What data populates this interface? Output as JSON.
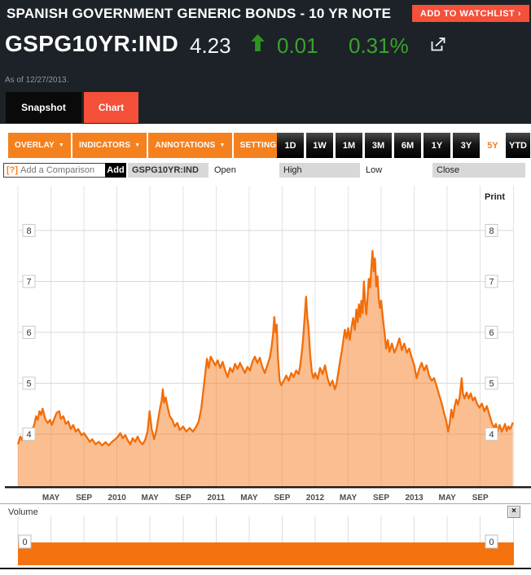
{
  "header": {
    "instrument_title": "SPANISH GOVERNMENT GENERIC BONDS - 10 YR NOTE",
    "watchlist_button": "ADD TO WATCHLIST ›",
    "ticker": "GSPG10YR:IND",
    "price": "4.23",
    "change_direction": "up",
    "change": "0.01",
    "change_pct": "0.31%",
    "as_of": "As of 12/27/2013.",
    "up_green": "#3ba32a",
    "accent_red": "#f4503a"
  },
  "tabs": [
    {
      "label": "Snapshot",
      "active": false
    },
    {
      "label": "Chart",
      "active": true
    }
  ],
  "toolbar": {
    "dropdown_caret": "▼",
    "dropdowns": [
      {
        "label": "OVERLAY"
      },
      {
        "label": "INDICATORS"
      },
      {
        "label": "ANNOTATIONS"
      },
      {
        "label": "SETTINGS"
      }
    ],
    "ranges": [
      {
        "label": "1D",
        "selected": false
      },
      {
        "label": "1W",
        "selected": false
      },
      {
        "label": "1M",
        "selected": false
      },
      {
        "label": "3M",
        "selected": false
      },
      {
        "label": "6M",
        "selected": false
      },
      {
        "label": "1Y",
        "selected": false
      },
      {
        "label": "3Y",
        "selected": false
      },
      {
        "label": "5Y",
        "selected": true
      },
      {
        "label": "YTD",
        "selected": false
      }
    ]
  },
  "comparison": {
    "help_icon": "[?]",
    "placeholder": "Add a Comparison",
    "add_button": "Add",
    "columns": [
      "GSPG10YR:IND",
      "Open",
      "High",
      "Low",
      "Close"
    ]
  },
  "chart": {
    "print_label": "Print"
  },
  "volume_panel": {
    "label": "Volume",
    "close_glyph": "×",
    "zero_left": "0",
    "zero_right": "0",
    "bar_color": "#f5730f"
  },
  "chart_data": [
    {
      "type": "area",
      "series_name": "GSPG10YR:IND 10-yr yield (%)",
      "x_unit": "months since Jan 2009",
      "xlim": [
        0,
        60
      ],
      "ylim": [
        2.98,
        8.88
      ],
      "grid": true,
      "y_ticks": [
        4,
        5,
        6,
        7,
        8
      ],
      "x_ticks": [
        {
          "m": 4,
          "label": "MAY"
        },
        {
          "m": 8,
          "label": "SEP"
        },
        {
          "m": 12,
          "label": "2010"
        },
        {
          "m": 16,
          "label": "MAY"
        },
        {
          "m": 20,
          "label": "SEP"
        },
        {
          "m": 24,
          "label": "2011"
        },
        {
          "m": 28,
          "label": "MAY"
        },
        {
          "m": 32,
          "label": "SEP"
        },
        {
          "m": 36,
          "label": "2012"
        },
        {
          "m": 40,
          "label": "MAY"
        },
        {
          "m": 44,
          "label": "SEP"
        },
        {
          "m": 48,
          "label": "2013"
        },
        {
          "m": 52,
          "label": "MAY"
        },
        {
          "m": 56,
          "label": "SEP"
        }
      ],
      "line_color": "#f26d09",
      "fill_color": "rgba(245,120,25,0.48)",
      "points": [
        [
          0,
          3.8
        ],
        [
          0.3,
          3.95
        ],
        [
          0.5,
          3.88
        ],
        [
          0.8,
          4.05
        ],
        [
          1.1,
          3.98
        ],
        [
          1.4,
          4.1
        ],
        [
          1.7,
          4.05
        ],
        [
          2,
          4.2
        ],
        [
          2.2,
          4.35
        ],
        [
          2.4,
          4.28
        ],
        [
          2.6,
          4.45
        ],
        [
          2.8,
          4.38
        ],
        [
          3,
          4.5
        ],
        [
          3.3,
          4.3
        ],
        [
          3.6,
          4.22
        ],
        [
          3.9,
          4.28
        ],
        [
          4.1,
          4.18
        ],
        [
          4.4,
          4.3
        ],
        [
          4.7,
          4.42
        ],
        [
          5,
          4.45
        ],
        [
          5.2,
          4.3
        ],
        [
          5.5,
          4.35
        ],
        [
          5.8,
          4.2
        ],
        [
          6.1,
          4.25
        ],
        [
          6.4,
          4.1
        ],
        [
          6.7,
          4.18
        ],
        [
          7,
          4.05
        ],
        [
          7.3,
          4.1
        ],
        [
          7.7,
          3.98
        ],
        [
          8,
          4.02
        ],
        [
          8.3,
          3.95
        ],
        [
          8.7,
          3.85
        ],
        [
          9,
          3.9
        ],
        [
          9.4,
          3.8
        ],
        [
          9.8,
          3.85
        ],
        [
          10.2,
          3.78
        ],
        [
          10.6,
          3.84
        ],
        [
          11,
          3.78
        ],
        [
          11.4,
          3.85
        ],
        [
          11.8,
          3.9
        ],
        [
          12.1,
          3.95
        ],
        [
          12.4,
          4.02
        ],
        [
          12.7,
          3.92
        ],
        [
          13,
          3.98
        ],
        [
          13.3,
          3.88
        ],
        [
          13.6,
          3.8
        ],
        [
          13.9,
          3.92
        ],
        [
          14.2,
          3.85
        ],
        [
          14.5,
          3.95
        ],
        [
          14.8,
          3.85
        ],
        [
          15.1,
          3.8
        ],
        [
          15.4,
          3.88
        ],
        [
          15.7,
          4.05
        ],
        [
          15.95,
          4.45
        ],
        [
          16.2,
          4.1
        ],
        [
          16.5,
          3.9
        ],
        [
          16.8,
          4.1
        ],
        [
          17,
          4.3
        ],
        [
          17.2,
          4.5
        ],
        [
          17.4,
          4.65
        ],
        [
          17.55,
          4.88
        ],
        [
          17.7,
          4.62
        ],
        [
          17.9,
          4.72
        ],
        [
          18.1,
          4.55
        ],
        [
          18.4,
          4.35
        ],
        [
          18.7,
          4.28
        ],
        [
          19,
          4.15
        ],
        [
          19.3,
          4.22
        ],
        [
          19.6,
          4.08
        ],
        [
          20,
          4.15
        ],
        [
          20.4,
          4.05
        ],
        [
          20.8,
          4.12
        ],
        [
          21.2,
          4.05
        ],
        [
          21.6,
          4.15
        ],
        [
          21.9,
          4.25
        ],
        [
          22.2,
          4.5
        ],
        [
          22.45,
          4.85
        ],
        [
          22.7,
          5.2
        ],
        [
          22.9,
          5.48
        ],
        [
          23.1,
          5.3
        ],
        [
          23.35,
          5.52
        ],
        [
          23.6,
          5.45
        ],
        [
          23.9,
          5.35
        ],
        [
          24.2,
          5.45
        ],
        [
          24.5,
          5.3
        ],
        [
          24.8,
          5.42
        ],
        [
          25.1,
          5.25
        ],
        [
          25.4,
          5.12
        ],
        [
          25.7,
          5.3
        ],
        [
          26,
          5.22
        ],
        [
          26.3,
          5.38
        ],
        [
          26.6,
          5.28
        ],
        [
          26.9,
          5.4
        ],
        [
          27.2,
          5.3
        ],
        [
          27.5,
          5.2
        ],
        [
          27.8,
          5.32
        ],
        [
          28.1,
          5.25
        ],
        [
          28.4,
          5.42
        ],
        [
          28.7,
          5.52
        ],
        [
          29,
          5.4
        ],
        [
          29.3,
          5.5
        ],
        [
          29.6,
          5.32
        ],
        [
          29.9,
          5.2
        ],
        [
          30.2,
          5.35
        ],
        [
          30.5,
          5.5
        ],
        [
          30.7,
          5.68
        ],
        [
          30.9,
          5.95
        ],
        [
          31.05,
          6.3
        ],
        [
          31.2,
          6
        ],
        [
          31.35,
          6.15
        ],
        [
          31.5,
          5.5
        ],
        [
          31.7,
          5.05
        ],
        [
          31.9,
          4.96
        ],
        [
          32.2,
          5.05
        ],
        [
          32.5,
          5.15
        ],
        [
          32.8,
          5.05
        ],
        [
          33.1,
          5.2
        ],
        [
          33.4,
          5.12
        ],
        [
          33.7,
          5.25
        ],
        [
          34,
          5.18
        ],
        [
          34.2,
          5.35
        ],
        [
          34.45,
          5.7
        ],
        [
          34.6,
          6
        ],
        [
          34.75,
          6.35
        ],
        [
          34.9,
          6.7
        ],
        [
          35.05,
          6.3
        ],
        [
          35.2,
          6.1
        ],
        [
          35.4,
          5.55
        ],
        [
          35.6,
          5.22
        ],
        [
          35.8,
          5.1
        ],
        [
          36,
          5.2
        ],
        [
          36.3,
          5.08
        ],
        [
          36.6,
          5.3
        ],
        [
          36.9,
          5.18
        ],
        [
          37.2,
          5.35
        ],
        [
          37.5,
          5.1
        ],
        [
          37.8,
          4.95
        ],
        [
          38.1,
          5.05
        ],
        [
          38.4,
          4.88
        ],
        [
          38.6,
          5
        ],
        [
          38.8,
          5.2
        ],
        [
          39,
          5.42
        ],
        [
          39.2,
          5.6
        ],
        [
          39.4,
          5.82
        ],
        [
          39.6,
          6.05
        ],
        [
          39.8,
          5.88
        ],
        [
          40,
          6.08
        ],
        [
          40.2,
          5.85
        ],
        [
          40.4,
          6.1
        ],
        [
          40.6,
          6.28
        ],
        [
          40.8,
          6.05
        ],
        [
          41,
          6.45
        ],
        [
          41.15,
          6.2
        ],
        [
          41.3,
          6.55
        ],
        [
          41.45,
          6.3
        ],
        [
          41.6,
          6.62
        ],
        [
          41.75,
          6.38
        ],
        [
          41.9,
          7
        ],
        [
          42.05,
          6.6
        ],
        [
          42.2,
          6.35
        ],
        [
          42.35,
          6.68
        ],
        [
          42.5,
          7.05
        ],
        [
          42.65,
          6.88
        ],
        [
          42.8,
          7.25
        ],
        [
          42.95,
          7.6
        ],
        [
          43.1,
          7.2
        ],
        [
          43.25,
          7.45
        ],
        [
          43.4,
          6.9
        ],
        [
          43.55,
          7.1
        ],
        [
          43.7,
          6.68
        ],
        [
          43.85,
          6.48
        ],
        [
          44,
          6.62
        ],
        [
          44.2,
          6.28
        ],
        [
          44.4,
          6
        ],
        [
          44.6,
          5.68
        ],
        [
          44.8,
          5.85
        ],
        [
          45,
          5.62
        ],
        [
          45.3,
          5.78
        ],
        [
          45.6,
          5.6
        ],
        [
          45.9,
          5.72
        ],
        [
          46.2,
          5.88
        ],
        [
          46.5,
          5.65
        ],
        [
          46.8,
          5.78
        ],
        [
          47.1,
          5.6
        ],
        [
          47.4,
          5.68
        ],
        [
          47.7,
          5.5
        ],
        [
          48,
          5.35
        ],
        [
          48.3,
          5.1
        ],
        [
          48.6,
          5.28
        ],
        [
          48.9,
          5.4
        ],
        [
          49.2,
          5.25
        ],
        [
          49.5,
          5.35
        ],
        [
          49.8,
          5.15
        ],
        [
          50.1,
          5.05
        ],
        [
          50.4,
          5.1
        ],
        [
          50.7,
          4.95
        ],
        [
          51,
          4.78
        ],
        [
          51.3,
          4.62
        ],
        [
          51.6,
          4.42
        ],
        [
          51.9,
          4.25
        ],
        [
          52.1,
          4.05
        ],
        [
          52.3,
          4.22
        ],
        [
          52.5,
          4.48
        ],
        [
          52.7,
          4.32
        ],
        [
          52.9,
          4.55
        ],
        [
          53.1,
          4.68
        ],
        [
          53.3,
          4.58
        ],
        [
          53.5,
          4.72
        ],
        [
          53.75,
          5.1
        ],
        [
          53.9,
          4.8
        ],
        [
          54.1,
          4.7
        ],
        [
          54.35,
          4.82
        ],
        [
          54.6,
          4.7
        ],
        [
          54.85,
          4.8
        ],
        [
          55.1,
          4.66
        ],
        [
          55.35,
          4.72
        ],
        [
          55.6,
          4.6
        ],
        [
          55.9,
          4.52
        ],
        [
          56.2,
          4.6
        ],
        [
          56.5,
          4.45
        ],
        [
          56.8,
          4.55
        ],
        [
          57.1,
          4.38
        ],
        [
          57.4,
          4.22
        ],
        [
          57.7,
          4.12
        ],
        [
          57.9,
          4.2
        ],
        [
          58.1,
          4.05
        ],
        [
          58.35,
          4.18
        ],
        [
          58.6,
          4.05
        ],
        [
          58.8,
          4.12
        ],
        [
          59,
          4.2
        ],
        [
          59.2,
          4.06
        ],
        [
          59.4,
          4.15
        ],
        [
          59.6,
          4.1
        ],
        [
          59.8,
          4.16
        ],
        [
          59.95,
          4.23
        ]
      ]
    },
    {
      "type": "bar",
      "title": "Volume",
      "constant_value": 0,
      "y_labels": [
        "0",
        "0"
      ],
      "bar_color": "#f5730f"
    }
  ]
}
